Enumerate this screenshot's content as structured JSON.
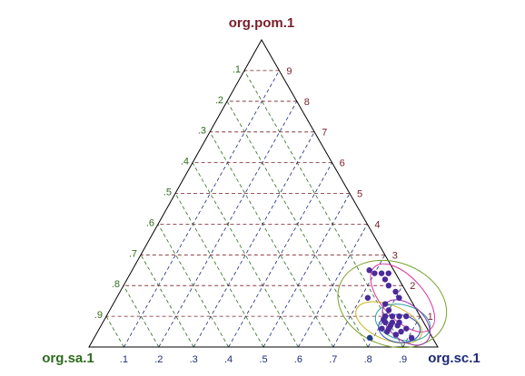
{
  "chart_data": {
    "type": "scatter",
    "subtype": "ternary",
    "axes": {
      "top": "org.pom.1",
      "left": "org.sa.1",
      "right": "org.sc.1"
    },
    "tick_labels": {
      "pom": [
        "1",
        "2",
        "3",
        "4",
        "5",
        "6",
        "7",
        "8",
        "9"
      ],
      "sa": [
        ".1",
        ".2",
        ".3",
        ".4",
        ".5",
        ".6",
        ".7",
        ".8",
        ".9"
      ],
      "sc": [
        ".1",
        ".2",
        ".3",
        ".4",
        ".5",
        ".6",
        ".7",
        ".8",
        ".9"
      ]
    },
    "grid": true,
    "colors": {
      "pom": "#7a1f2b",
      "sa": "#2e6b1e",
      "sc": "#1f2a7a",
      "triangle": "#000000",
      "points": "#4b2a9a",
      "point_outlier": "#1f3f8a"
    },
    "points": [
      {
        "sa": 0.07,
        "sc": 0.68,
        "pom": 0.25
      },
      {
        "sa": 0.06,
        "sc": 0.7,
        "pom": 0.24
      },
      {
        "sa": 0.04,
        "sc": 0.72,
        "pom": 0.24
      },
      {
        "sa": 0.04,
        "sc": 0.74,
        "pom": 0.22
      },
      {
        "sa": 0.02,
        "sc": 0.74,
        "pom": 0.24
      },
      {
        "sa": 0.04,
        "sc": 0.76,
        "pom": 0.2
      },
      {
        "sa": 0.03,
        "sc": 0.79,
        "pom": 0.18
      },
      {
        "sa": 0.12,
        "sc": 0.72,
        "pom": 0.16
      },
      {
        "sa": 0.03,
        "sc": 0.81,
        "pom": 0.16
      },
      {
        "sa": 0.08,
        "sc": 0.78,
        "pom": 0.14
      },
      {
        "sa": 0.08,
        "sc": 0.8,
        "pom": 0.12
      },
      {
        "sa": 0.1,
        "sc": 0.8,
        "pom": 0.1
      },
      {
        "sa": 0.08,
        "sc": 0.82,
        "pom": 0.1
      },
      {
        "sa": 0.06,
        "sc": 0.84,
        "pom": 0.1
      },
      {
        "sa": 0.04,
        "sc": 0.86,
        "pom": 0.1
      },
      {
        "sa": 0.11,
        "sc": 0.8,
        "pom": 0.09
      },
      {
        "sa": 0.11,
        "sc": 0.81,
        "pom": 0.08
      },
      {
        "sa": 0.09,
        "sc": 0.83,
        "pom": 0.08
      },
      {
        "sa": 0.07,
        "sc": 0.85,
        "pom": 0.08
      },
      {
        "sa": 0.1,
        "sc": 0.83,
        "pom": 0.07
      },
      {
        "sa": 0.08,
        "sc": 0.85,
        "pom": 0.07
      },
      {
        "sa": 0.13,
        "sc": 0.81,
        "pom": 0.06
      },
      {
        "sa": 0.11,
        "sc": 0.83,
        "pom": 0.06
      },
      {
        "sa": 0.06,
        "sc": 0.88,
        "pom": 0.06
      },
      {
        "sa": 0.12,
        "sc": 0.83,
        "pom": 0.05
      },
      {
        "sa": 0.08,
        "sc": 0.87,
        "pom": 0.05
      },
      {
        "sa": 0.1,
        "sc": 0.86,
        "pom": 0.04
      },
      {
        "sa": 0.06,
        "sc": 0.91,
        "pom": 0.03
      },
      {
        "sa": 0.1,
        "sc": 0.86,
        "pom": 0.04
      },
      {
        "sa": 0.18,
        "sc": 0.79,
        "pom": 0.03,
        "outlier": true
      }
    ],
    "ellipses": [
      {
        "color": "#7aa02a",
        "center": {
          "sa": 0.06,
          "sc": 0.8,
          "pom": 0.14
        },
        "rx_units": 0.16,
        "ry_units": 0.12,
        "angle_deg": 20
      },
      {
        "color": "#d9309a",
        "center": {
          "sa": 0.02,
          "sc": 0.82,
          "pom": 0.16
        },
        "rx_units": 0.12,
        "ry_units": 0.06,
        "angle_deg": 48
      },
      {
        "color": "#c9b320",
        "center": {
          "sa": 0.1,
          "sc": 0.82,
          "pom": 0.08
        },
        "rx_units": 0.1,
        "ry_units": 0.05,
        "angle_deg": 22
      },
      {
        "color": "#2fa0a0",
        "center": {
          "sa": 0.06,
          "sc": 0.86,
          "pom": 0.08
        },
        "rx_units": 0.08,
        "ry_units": 0.05,
        "angle_deg": 15
      },
      {
        "color": "#9a2fae",
        "center": {
          "sa": 0.05,
          "sc": 0.87,
          "pom": 0.08
        },
        "rx_units": 0.08,
        "ry_units": 0.05,
        "angle_deg": 42
      },
      {
        "color": "#2a4fbf",
        "center": {
          "sa": 0.08,
          "sc": 0.86,
          "pom": 0.06
        },
        "rx_units": 0.06,
        "ry_units": 0.04,
        "angle_deg": 8
      }
    ]
  }
}
